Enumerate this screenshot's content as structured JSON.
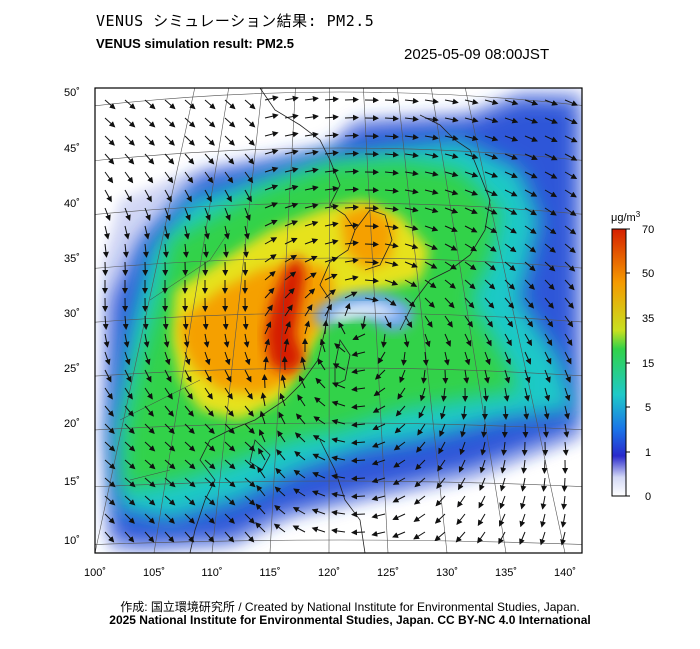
{
  "title_jp": "VENUS シミュレーション結果: PM2.5",
  "title_en": "VENUS simulation result: PM2.5",
  "timestamp": "2025-05-09 08:00JST",
  "credit": "作成: 国立環境研究所 / Created by National Institute for Environmental Studies, Japan.",
  "license": "2025 National Institute for Environmental Studies, Japan. CC BY-NC 4.0 International",
  "axes": {
    "lat_labels": [
      "50˚",
      "45˚",
      "40˚",
      "35˚",
      "30˚",
      "25˚",
      "20˚",
      "15˚",
      "10˚"
    ],
    "lon_labels": [
      "100˚",
      "105˚",
      "110˚",
      "115˚",
      "120˚",
      "125˚",
      "130˚",
      "135˚",
      "140˚"
    ]
  },
  "colorbar": {
    "unit_base": "μg/m",
    "unit_sup": "3",
    "labels": [
      "70",
      "50",
      "35",
      "15",
      "5",
      "1",
      "0"
    ],
    "colors": [
      "#d51f00",
      "#f59a00",
      "#f0e81a",
      "#31d24a",
      "#1fc9c8",
      "#1a74e8",
      "#2929cc",
      "#d3d8f5",
      "#ffffff"
    ]
  }
}
